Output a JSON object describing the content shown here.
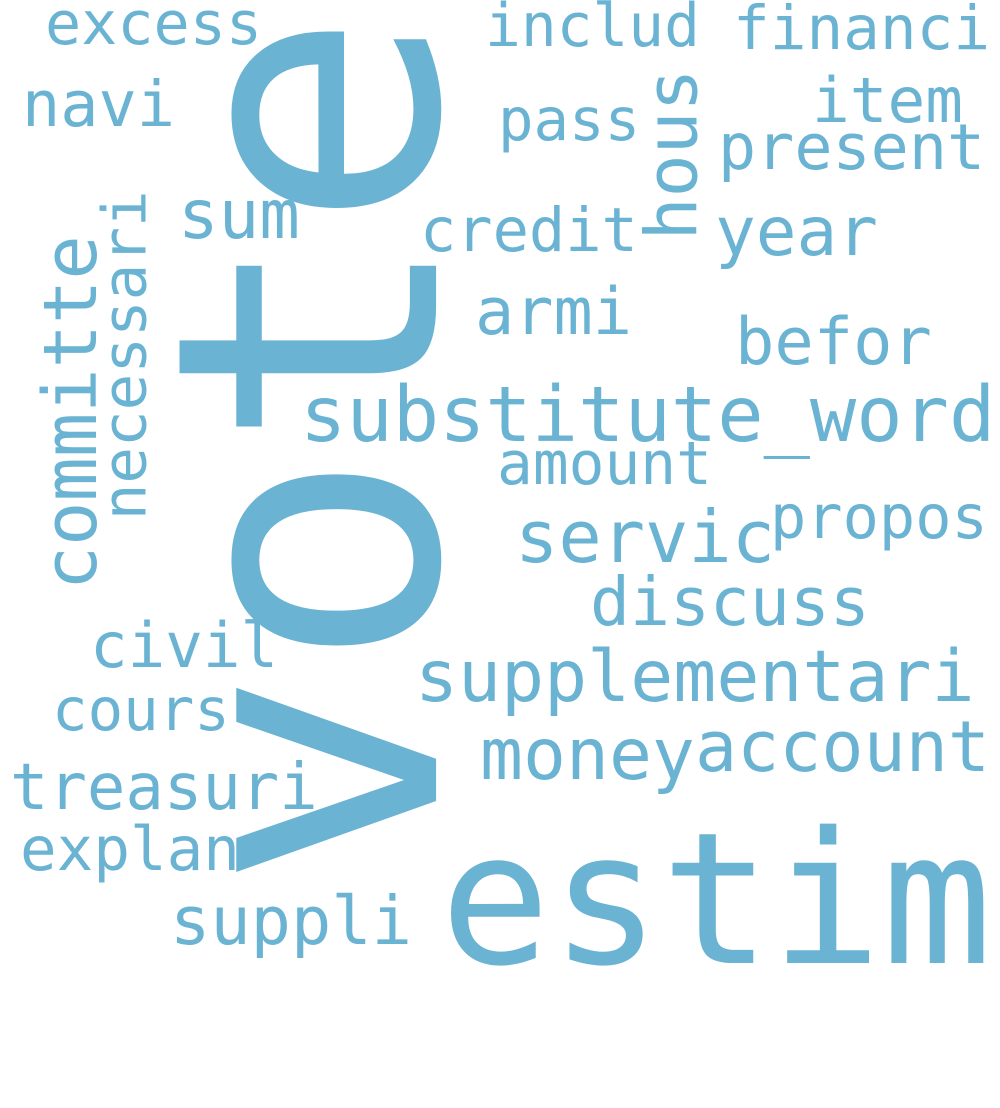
{
  "color": "#6bb3d2",
  "words": [
    "vote",
    "estim",
    "substitute_word",
    "supplementari",
    "money",
    "account",
    "committe",
    "necessari",
    "servic",
    "discuss",
    "present",
    "year",
    "befor",
    "treasuri",
    "financi",
    "includ",
    "hous",
    "credit",
    "armi",
    "amount",
    "propos",
    "suppli",
    "sum",
    "item",
    "excess",
    "navi",
    "pass",
    "civil",
    "cours",
    "explan"
  ]
}
